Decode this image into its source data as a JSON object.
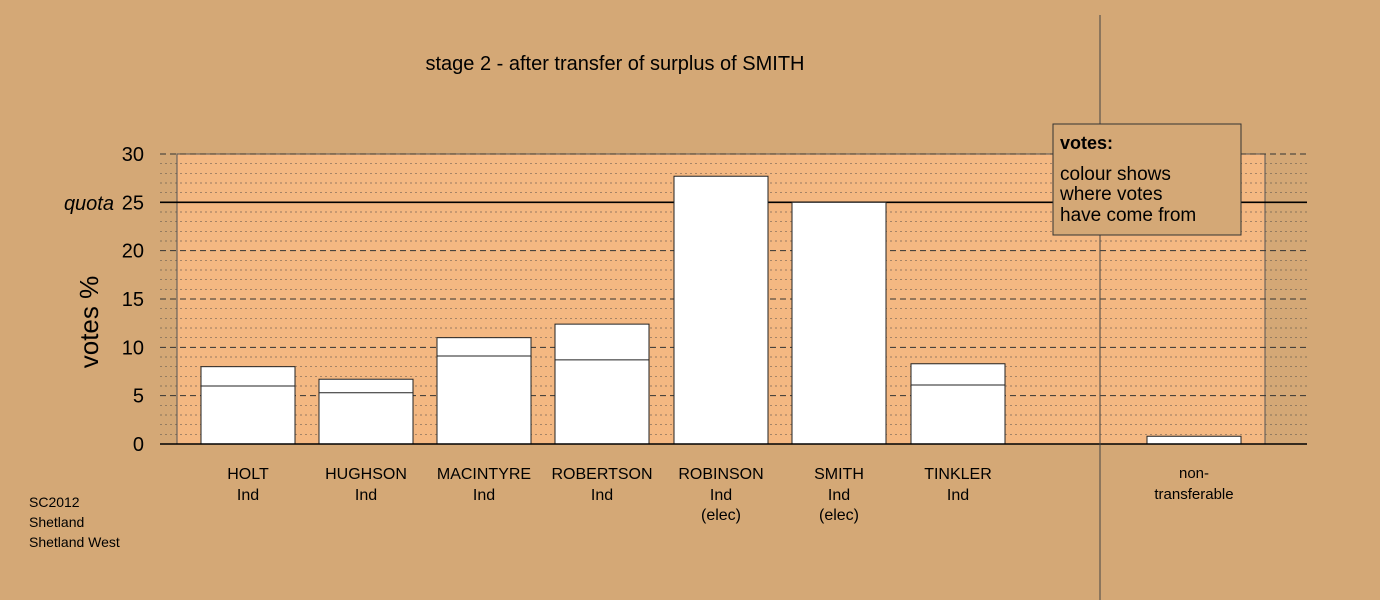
{
  "chart_data": {
    "type": "bar",
    "title": "stage 2 - after transfer of surplus of SMITH",
    "ylabel": "votes %",
    "ylim": [
      0,
      30
    ],
    "yticks": [
      0,
      5,
      10,
      15,
      20,
      25,
      30
    ],
    "grid": true,
    "quota": {
      "label": "quota",
      "value": 25
    },
    "legend": {
      "position": "top-right",
      "title": "votes:",
      "lines": [
        "colour shows",
        "where votes",
        "have come from"
      ]
    },
    "candidates": [
      {
        "name": "HOLT",
        "party": "Ind",
        "status": "",
        "first_prefs": 6.0,
        "total": 8.0
      },
      {
        "name": "HUGHSON",
        "party": "Ind",
        "status": "",
        "first_prefs": 5.3,
        "total": 6.7
      },
      {
        "name": "MACINTYRE",
        "party": "Ind",
        "status": "",
        "first_prefs": 9.1,
        "total": 11.0
      },
      {
        "name": "ROBERTSON",
        "party": "Ind",
        "status": "",
        "first_prefs": 8.7,
        "total": 12.4
      },
      {
        "name": "ROBINSON",
        "party": "Ind",
        "status": "(elec)",
        "first_prefs": 27.7,
        "total": 27.7
      },
      {
        "name": "SMITH",
        "party": "Ind",
        "status": "(elec)",
        "first_prefs": 25.0,
        "total": 25.0
      },
      {
        "name": "TINKLER",
        "party": "Ind",
        "status": "",
        "first_prefs": 6.1,
        "total": 8.3
      }
    ],
    "non_transferable": {
      "label_line1": "non-",
      "label_line2": "transferable",
      "value": 0.8
    }
  },
  "footer": {
    "lines": [
      "SC2012",
      "Shetland",
      "Shetland West"
    ]
  },
  "colors": {
    "background": "#d4a876",
    "plot_area": "#f4b882",
    "bar_fill": "#ffffff",
    "legend_fill": "#d4a876"
  }
}
